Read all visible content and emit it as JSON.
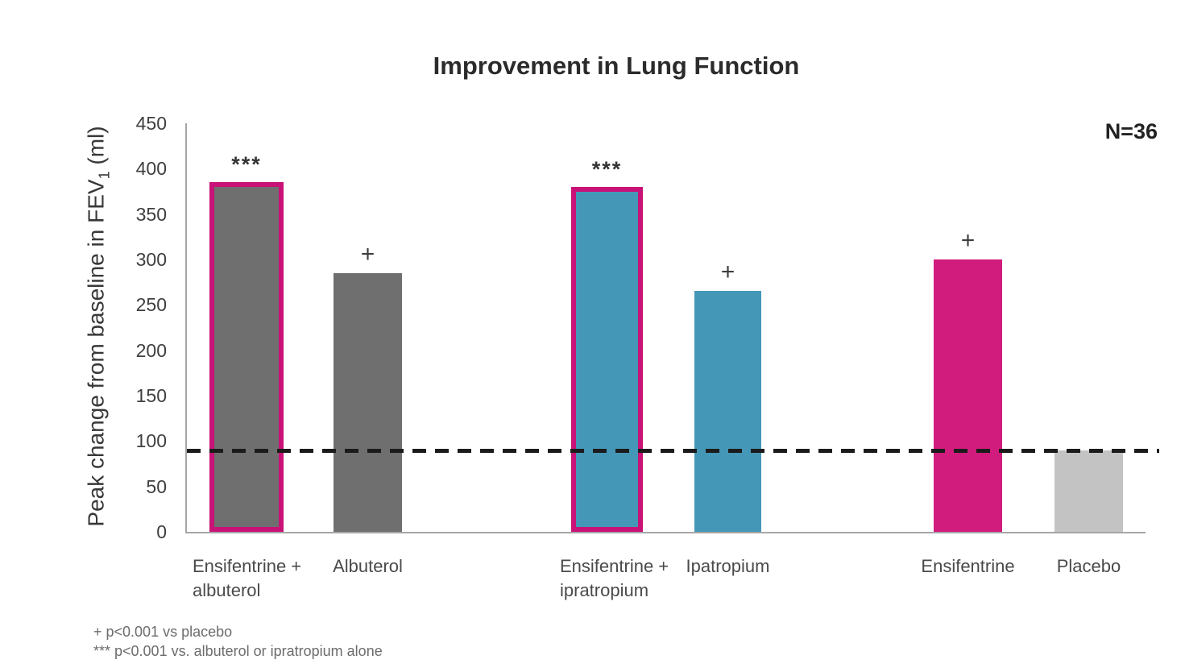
{
  "chart_data": {
    "type": "bar",
    "title": "Improvement in Lung Function",
    "n_label": "N=36",
    "ylabel": "Peak change from baseline in FEV₁ (ml)",
    "ylabel_main": "Peak change from baseline in FEV",
    "ylabel_sub": "1",
    "ylabel_unit": " (ml)",
    "ylim": [
      0,
      450
    ],
    "yticks": [
      450,
      400,
      350,
      300,
      250,
      200,
      150,
      100,
      50,
      0
    ],
    "grid": false,
    "legend": "none",
    "reference_line": {
      "value": 90,
      "style": "dashed",
      "color": "#1b1b1b",
      "meaning": "placebo level"
    },
    "categories": [
      "Ensifentrine + albuterol",
      "Albuterol",
      "Ensifentrine + ipratropium",
      "Ipatropium",
      "Ensifentrine",
      "Placebo"
    ],
    "values": [
      385,
      285,
      380,
      265,
      300,
      90
    ],
    "bars": [
      {
        "label_line1": "Ensifentrine +",
        "label_line2": "albuterol",
        "value": 385,
        "fill": "#6f6f6f",
        "border": "#c81277",
        "annotation": "***"
      },
      {
        "label_line1": "Albuterol",
        "label_line2": "",
        "value": 285,
        "fill": "#6f6f6f",
        "border": "",
        "annotation": "+"
      },
      {
        "label_line1": "Ensifentrine +",
        "label_line2": "ipratropium",
        "value": 380,
        "fill": "#4597b7",
        "border": "#c81277",
        "annotation": "***"
      },
      {
        "label_line1": "Ipatropium",
        "label_line2": "",
        "value": 265,
        "fill": "#4597b7",
        "border": "",
        "annotation": "+"
      },
      {
        "label_line1": "Ensifentrine",
        "label_line2": "",
        "value": 300,
        "fill": "#d11c7e",
        "border": "",
        "annotation": "+"
      },
      {
        "label_line1": "Placebo",
        "label_line2": "",
        "value": 90,
        "fill": "#c3c3c3",
        "border": "",
        "annotation": ""
      }
    ],
    "colors": {
      "gray_bar": "#6f6f6f",
      "blue_bar": "#4597b7",
      "magenta_bar": "#d11c7e",
      "magenta_outline": "#c81277",
      "placebo_bar": "#c3c3c3",
      "axis": "#a6a6a6",
      "dashed_line": "#1b1b1b"
    },
    "footnotes": [
      "+ p<0.001 vs placebo",
      "*** p<0.001 vs. albuterol or ipratropium alone"
    ]
  }
}
